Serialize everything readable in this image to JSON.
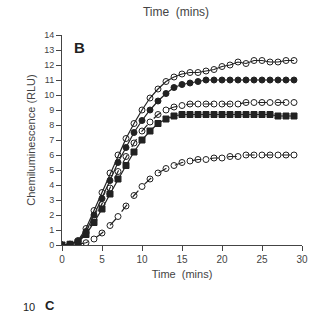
{
  "chart_data": {
    "type": "line",
    "title": "Time  (mins)",
    "x_label": "Time  (mins)",
    "y_label": "Chemiluminescence (RLU)",
    "annotations": [
      "B",
      "10",
      "C"
    ],
    "x": [
      0,
      1,
      2,
      3,
      4,
      5,
      6,
      7,
      8,
      9,
      10,
      11,
      12,
      13,
      14,
      15,
      16,
      17,
      18,
      19,
      20,
      21,
      22,
      23,
      24,
      25,
      26,
      27,
      28,
      29
    ],
    "xlim": [
      0,
      30
    ],
    "ylim": [
      0,
      14
    ],
    "xticks": [
      0,
      5,
      10,
      15,
      20,
      25,
      30
    ],
    "yticks": [
      0,
      1,
      2,
      3,
      4,
      5,
      6,
      7,
      8,
      9,
      10,
      11,
      12,
      13,
      14
    ],
    "grid": false,
    "series": [
      {
        "color": "#222222",
        "marker": "circle-open",
        "line_style": "solid",
        "values": [
          0,
          0.05,
          0.3,
          1.1,
          2.3,
          3.5,
          4.8,
          6.0,
          7.1,
          8.1,
          9.0,
          9.8,
          10.4,
          10.9,
          11.2,
          11.4,
          11.5,
          11.5,
          11.6,
          11.7,
          11.9,
          12.0,
          12.2,
          12.1,
          12.3,
          12.3,
          12.2,
          12.2,
          12.3,
          12.3
        ]
      },
      {
        "color": "#222222",
        "marker": "circle",
        "line_style": "solid",
        "values": [
          0,
          0.05,
          0.25,
          0.9,
          2.0,
          3.1,
          4.3,
          5.5,
          6.5,
          7.5,
          8.3,
          9.0,
          9.6,
          10.1,
          10.5,
          10.7,
          10.8,
          10.9,
          11.0,
          11.0,
          11.0,
          11.0,
          11.0,
          11.0,
          11.0,
          11.0,
          11.0,
          11.0,
          11.0,
          11.0
        ]
      },
      {
        "color": "#222222",
        "marker": "circle-open",
        "line_style": "dashed",
        "values": [
          0,
          0.05,
          0.2,
          0.8,
          1.7,
          2.7,
          3.8,
          4.9,
          5.9,
          6.8,
          7.6,
          8.2,
          8.7,
          9.0,
          9.2,
          9.3,
          9.4,
          9.4,
          9.4,
          9.4,
          9.4,
          9.4,
          9.4,
          9.5,
          9.5,
          9.5,
          9.5,
          9.5,
          9.5,
          9.5
        ]
      },
      {
        "color": "#222222",
        "marker": "square",
        "line_style": "solid",
        "values": [
          0,
          0.05,
          0.2,
          0.7,
          1.5,
          2.4,
          3.4,
          4.4,
          5.3,
          6.2,
          7.0,
          7.6,
          8.1,
          8.4,
          8.6,
          8.7,
          8.7,
          8.7,
          8.7,
          8.7,
          8.7,
          8.7,
          8.7,
          8.7,
          8.7,
          8.7,
          8.7,
          8.6,
          8.6,
          8.6
        ]
      },
      {
        "color": "#222222",
        "marker": "circle-open",
        "line_style": "dashed",
        "values": [
          0,
          0.0,
          0.05,
          0.15,
          0.4,
          0.8,
          1.3,
          1.9,
          2.6,
          3.3,
          3.9,
          4.4,
          4.8,
          5.1,
          5.3,
          5.5,
          5.6,
          5.7,
          5.7,
          5.8,
          5.8,
          5.9,
          5.9,
          6.0,
          6.0,
          6.0,
          6.0,
          6.0,
          6.0,
          6.0
        ]
      }
    ]
  }
}
